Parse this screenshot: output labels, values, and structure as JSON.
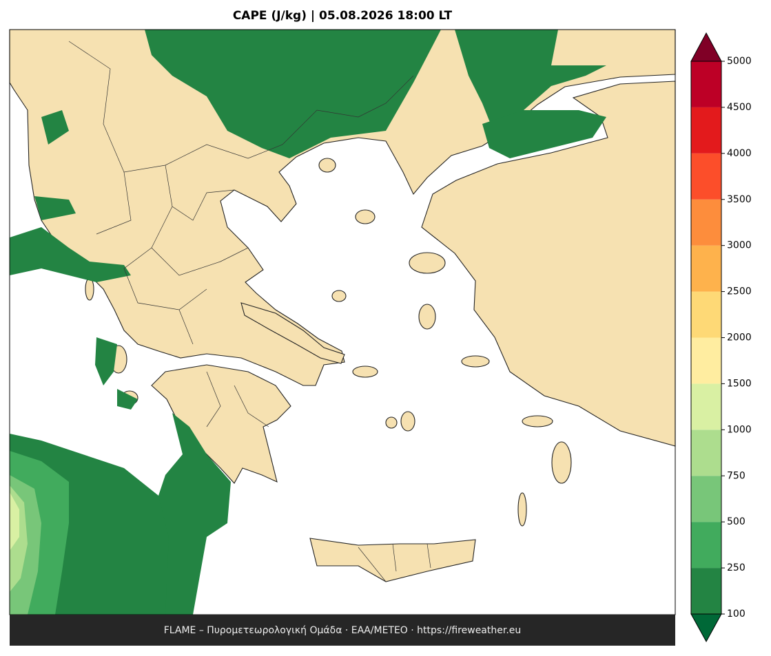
{
  "title": "CAPE (J/kg)  |  05.08.2026 18:00 LT",
  "footer": "FLAME – Πυρομετεωρολογική Ομάδα · ΕΑΑ/METEO · https://fireweather.eu",
  "colorbar": {
    "levels": [
      100,
      250,
      500,
      750,
      1000,
      1500,
      2000,
      2500,
      3000,
      3500,
      4000,
      4500,
      5000
    ],
    "colors": [
      "#238443",
      "#41ab5d",
      "#78c679",
      "#addd8e",
      "#d9f0a3",
      "#ffeda0",
      "#fed976",
      "#feb24c",
      "#fd8d3c",
      "#fc4e2a",
      "#e31a1c",
      "#bd0026"
    ],
    "under_color": "#006837",
    "over_color": "#800026"
  }
}
